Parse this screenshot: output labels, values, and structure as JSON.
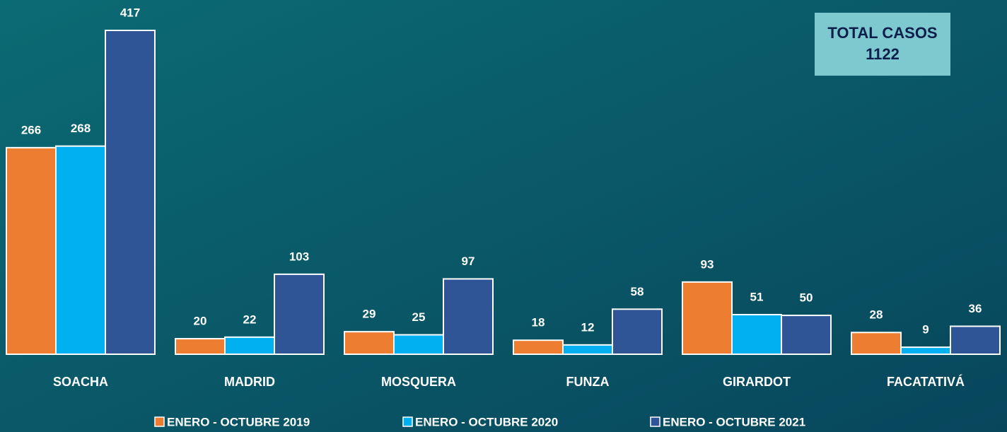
{
  "chart_data": {
    "type": "bar",
    "categories": [
      "SOACHA",
      "MADRID",
      "MOSQUERA",
      "FUNZA",
      "GIRARDOT",
      "FACATATIVÁ"
    ],
    "series": [
      {
        "name": "ENERO - OCTUBRE 2019",
        "color": "#ed7d31",
        "values": [
          266,
          20,
          29,
          18,
          93,
          28
        ]
      },
      {
        "name": "ENERO - OCTUBRE 2020",
        "color": "#00b0f0",
        "values": [
          268,
          22,
          25,
          12,
          51,
          9
        ]
      },
      {
        "name": "ENERO - OCTUBRE 2021",
        "color": "#2f5597",
        "values": [
          417,
          103,
          97,
          58,
          50,
          36
        ]
      }
    ],
    "annotations": [
      "TOTAL CASOS",
      "1122"
    ],
    "legend": "bottom"
  }
}
